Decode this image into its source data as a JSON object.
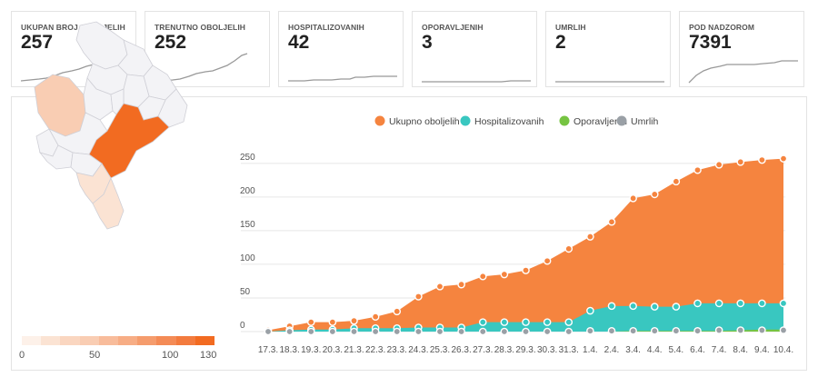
{
  "cards": [
    {
      "label": "UKUPAN BROJ OBOLJELIH",
      "value": "257"
    },
    {
      "label": "TRENUTNO OBOLJELIH",
      "value": "252"
    },
    {
      "label": "HOSPITALIZOVANIH",
      "value": "42"
    },
    {
      "label": "OPORAVLJENIH",
      "value": "3"
    },
    {
      "label": "UMRLIH",
      "value": "2"
    },
    {
      "label": "POD NADZOROM",
      "value": "7391"
    }
  ],
  "map_scale": {
    "labels": [
      "0",
      "50",
      "100",
      "130"
    ]
  },
  "colors": {
    "total": "#f5843f",
    "hosp": "#39c7c0",
    "recovered": "#76c442",
    "deaths": "#9aa0a6",
    "sparkline": "#999999",
    "map_high": "#f26b21",
    "map_light": "#f9cdb3",
    "map_lighter": "#fbe3d3",
    "map_base": "#f3f3f6"
  },
  "chart_data": {
    "type": "area",
    "categories": [
      "17.3.",
      "18.3.",
      "19.3.",
      "20.3.",
      "21.3.",
      "22.3.",
      "23.3.",
      "24.3.",
      "25.3.",
      "26.3.",
      "27.3.",
      "28.3.",
      "29.3.",
      "30.3.",
      "31.3.",
      "1.4.",
      "2.4.",
      "3.4.",
      "4.4.",
      "5.4.",
      "6.4.",
      "7.4.",
      "8.4.",
      "9.4.",
      "10.4."
    ],
    "series": [
      {
        "name": "Ukupno oboljelih",
        "values": [
          2,
          8,
          14,
          14,
          16,
          22,
          30,
          52,
          67,
          70,
          82,
          85,
          91,
          105,
          123,
          141,
          163,
          198,
          204,
          223,
          240,
          248,
          252,
          255,
          257
        ]
      },
      {
        "name": "Hospitalizovanih",
        "values": [
          0,
          2,
          3,
          3,
          5,
          5,
          5,
          6,
          6,
          6,
          14,
          14,
          14,
          14,
          14,
          31,
          38,
          38,
          37,
          37,
          42,
          42,
          42,
          42,
          42
        ]
      },
      {
        "name": "Oporavljenih",
        "values": [
          0,
          0,
          0,
          0,
          0,
          0,
          0,
          0,
          0,
          0,
          0,
          0,
          0,
          0,
          0,
          0,
          0,
          1,
          1,
          1,
          1,
          1,
          2,
          3,
          3
        ]
      },
      {
        "name": "Umrlih",
        "values": [
          0,
          0,
          0,
          0,
          0,
          0,
          0,
          0,
          0,
          0,
          0,
          0,
          0,
          0,
          0,
          1,
          1,
          1,
          1,
          1,
          1,
          2,
          2,
          2,
          2
        ]
      }
    ],
    "yticks": [
      0,
      50,
      100,
      150,
      200,
      250
    ],
    "ylim": [
      0,
      270
    ],
    "grid": true,
    "legend": "top-center"
  }
}
